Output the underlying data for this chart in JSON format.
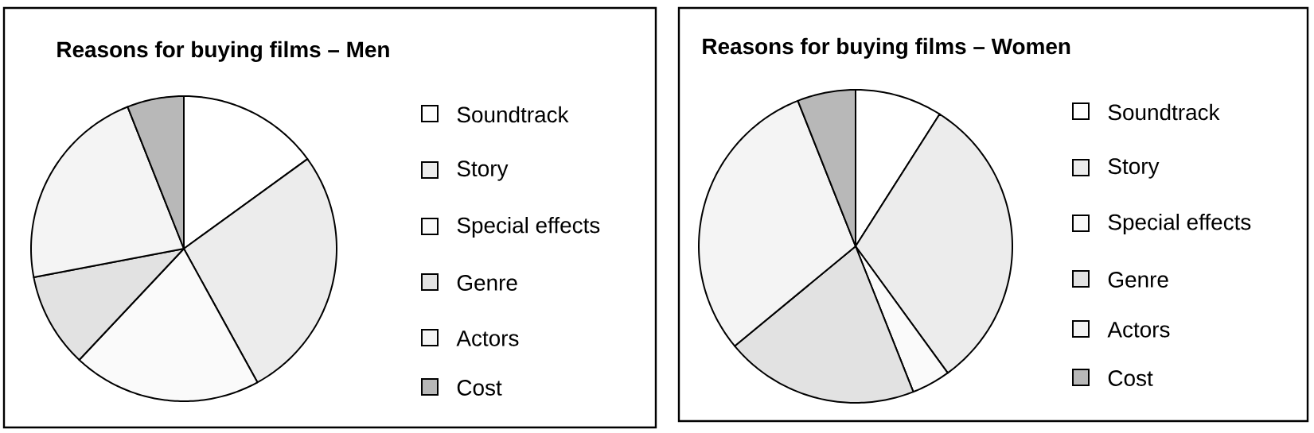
{
  "chart_data": [
    {
      "type": "pie",
      "title": "Reasons for buying films – Men",
      "categories": [
        "Soundtrack",
        "Story",
        "Special effects",
        "Genre",
        "Actors",
        "Cost"
      ],
      "values": [
        15,
        27,
        20,
        10,
        22,
        6
      ],
      "colors": [
        "#ffffff",
        "#ececec",
        "#fafafa",
        "#e2e2e2",
        "#f4f4f4",
        "#b8b8b8"
      ],
      "legend": "right"
    },
    {
      "type": "pie",
      "title": "Reasons for buying films – Women",
      "categories": [
        "Soundtrack",
        "Story",
        "Special effects",
        "Genre",
        "Actors",
        "Cost"
      ],
      "values": [
        9,
        31,
        4,
        20,
        30,
        6
      ],
      "colors": [
        "#ffffff",
        "#ececec",
        "#fafafa",
        "#e2e2e2",
        "#f4f4f4",
        "#b8b8b8"
      ],
      "legend": "right"
    }
  ]
}
